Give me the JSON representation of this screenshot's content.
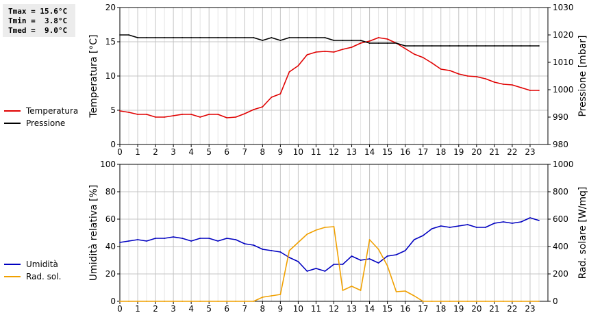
{
  "stats": [
    "Tmax = 15.6°C",
    "Tmin =  3.8°C",
    "Tmed =  9.0°C"
  ],
  "chart_data": [
    {
      "type": "line",
      "x": [
        0,
        0.5,
        1,
        1.5,
        2,
        2.5,
        3,
        3.5,
        4,
        4.5,
        5,
        5.5,
        6,
        6.5,
        7,
        7.5,
        8,
        8.5,
        9,
        9.5,
        10,
        10.5,
        11,
        11.5,
        12,
        12.5,
        13,
        13.5,
        14,
        14.5,
        15,
        15.5,
        16,
        16.5,
        17,
        17.5,
        18,
        18.5,
        19,
        19.5,
        20,
        20.5,
        21,
        21.5,
        22,
        22.5,
        23,
        23.5
      ],
      "xlim": [
        0,
        24
      ],
      "x_ticks": [
        "0",
        "1",
        "2",
        "3",
        "4",
        "5",
        "6",
        "7",
        "8",
        "9",
        "10",
        "11",
        "12",
        "13",
        "14",
        "15",
        "16",
        "17",
        "18",
        "19",
        "20",
        "21",
        "22",
        "23"
      ],
      "ylabel": "Temperatura [°C]",
      "ylim": [
        0,
        20
      ],
      "y_ticks": [
        "0",
        "5",
        "10",
        "15",
        "20"
      ],
      "y2label": "Pressione [mbar]",
      "y2lim": [
        980,
        1030
      ],
      "y2_ticks": [
        "980",
        "990",
        "1000",
        "1010",
        "1020",
        "1030"
      ],
      "grid": true,
      "series": [
        {
          "name": "Temperatura",
          "axis": "left",
          "color": "#e00000",
          "values": [
            4.9,
            4.7,
            4.4,
            4.4,
            4.0,
            4.0,
            4.2,
            4.4,
            4.4,
            4.0,
            4.4,
            4.4,
            3.9,
            4.0,
            4.5,
            5.1,
            5.5,
            6.9,
            7.4,
            10.6,
            11.5,
            13.1,
            13.5,
            13.6,
            13.5,
            13.9,
            14.2,
            14.8,
            15.1,
            15.6,
            15.4,
            14.8,
            14.0,
            13.2,
            12.7,
            11.9,
            11.0,
            10.8,
            10.3,
            10.0,
            9.9,
            9.6,
            9.1,
            8.8,
            8.7,
            8.3,
            7.9,
            7.9
          ]
        },
        {
          "name": "Pressione",
          "axis": "right",
          "color": "#000000",
          "values": [
            1020,
            1020,
            1019,
            1019,
            1019,
            1019,
            1019,
            1019,
            1019,
            1019,
            1019,
            1019,
            1019,
            1019,
            1019,
            1019,
            1018,
            1019,
            1018,
            1019,
            1019,
            1019,
            1019,
            1019,
            1018,
            1018,
            1018,
            1018,
            1017,
            1017,
            1017,
            1017,
            1016,
            1016,
            1016,
            1016,
            1016,
            1016,
            1016,
            1016,
            1016,
            1016,
            1016,
            1016,
            1016,
            1016,
            1016,
            1016
          ]
        }
      ]
    },
    {
      "type": "line",
      "x": [
        0,
        0.5,
        1,
        1.5,
        2,
        2.5,
        3,
        3.5,
        4,
        4.5,
        5,
        5.5,
        6,
        6.5,
        7,
        7.5,
        8,
        8.5,
        9,
        9.5,
        10,
        10.5,
        11,
        11.5,
        12,
        12.5,
        13,
        13.5,
        14,
        14.5,
        15,
        15.5,
        16,
        16.5,
        17,
        17.5,
        18,
        18.5,
        19,
        19.5,
        20,
        20.5,
        21,
        21.5,
        22,
        22.5,
        23,
        23.5
      ],
      "xlim": [
        0,
        24
      ],
      "x_ticks": [
        "0",
        "1",
        "2",
        "3",
        "4",
        "5",
        "6",
        "7",
        "8",
        "9",
        "10",
        "11",
        "12",
        "13",
        "14",
        "15",
        "16",
        "17",
        "18",
        "19",
        "20",
        "21",
        "22",
        "23"
      ],
      "ylabel": "Umidità relativa [%]",
      "ylim": [
        0,
        100
      ],
      "y_ticks": [
        "0",
        "20",
        "40",
        "60",
        "80",
        "100"
      ],
      "y2label": "Rad. solare [W/mq]",
      "y2lim": [
        0,
        1000
      ],
      "y2_ticks": [
        "0",
        "200",
        "400",
        "600",
        "800",
        "1000"
      ],
      "grid": true,
      "series": [
        {
          "name": "Umidità",
          "axis": "left",
          "color": "#0000c0",
          "values": [
            43,
            44,
            45,
            44,
            46,
            46,
            47,
            46,
            44,
            46,
            46,
            44,
            46,
            45,
            42,
            41,
            38,
            37,
            36,
            32,
            29,
            22,
            24,
            22,
            27,
            27,
            33,
            30,
            31,
            28,
            33,
            34,
            37,
            45,
            48,
            53,
            55,
            54,
            55,
            56,
            54,
            54,
            57,
            58,
            57,
            58,
            61,
            59
          ]
        },
        {
          "name": "Rad. sol.",
          "axis": "right",
          "color": "#f0a000",
          "values": [
            0,
            0,
            0,
            0,
            0,
            0,
            0,
            0,
            0,
            0,
            0,
            0,
            0,
            0,
            0,
            0,
            30,
            40,
            50,
            370,
            430,
            490,
            520,
            540,
            545,
            80,
            110,
            80,
            450,
            380,
            260,
            70,
            75,
            40,
            0,
            0,
            0,
            0,
            0,
            0,
            0,
            0,
            0,
            0,
            0,
            0,
            0,
            0
          ]
        }
      ]
    }
  ]
}
